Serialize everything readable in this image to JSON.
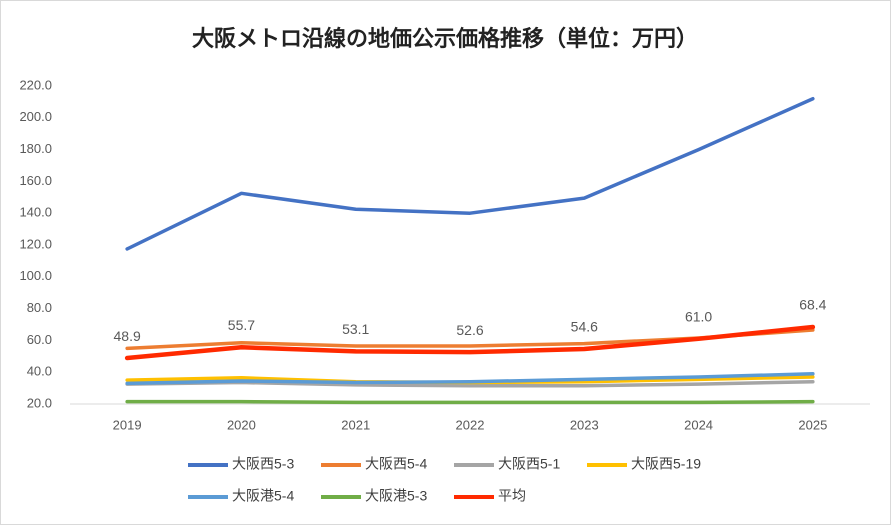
{
  "chart_data": {
    "type": "line",
    "title": "大阪メトロ沿線の地価公示価格推移（単位：万円）",
    "categories": [
      "2019",
      "2020",
      "2021",
      "2022",
      "2023",
      "2024",
      "2025"
    ],
    "ylim": [
      20,
      220
    ],
    "yticks": [
      {
        "value": 20,
        "label": "20.0"
      },
      {
        "value": 40,
        "label": "40.0"
      },
      {
        "value": 60,
        "label": "60.0"
      },
      {
        "value": 80,
        "label": "80.0"
      },
      {
        "value": 100,
        "label": "100.0"
      },
      {
        "value": 120,
        "label": "120.0"
      },
      {
        "value": 140,
        "label": "140.0"
      },
      {
        "value": 160,
        "label": "160.0"
      },
      {
        "value": 180,
        "label": "180.0"
      },
      {
        "value": 200,
        "label": "200.0"
      },
      {
        "value": 220,
        "label": "220.0"
      }
    ],
    "grid": false,
    "legend": "bottom",
    "series": [
      {
        "name": "大阪西5-3",
        "color": "#4472c4",
        "values": [
          117.5,
          152.5,
          142.5,
          140,
          149.5,
          180,
          212
        ]
      },
      {
        "name": "大阪西5-4",
        "color": "#ed7d31",
        "values": [
          55,
          58.5,
          56.5,
          56.5,
          58,
          61.5,
          66.5
        ]
      },
      {
        "name": "大阪西5-1",
        "color": "#a5a5a5",
        "values": [
          32.5,
          33.5,
          32,
          31.5,
          31.5,
          32.5,
          34
        ]
      },
      {
        "name": "大阪西5-19",
        "color": "#ffc000",
        "values": [
          35,
          36.5,
          34,
          33.5,
          34,
          35.5,
          37
        ]
      },
      {
        "name": "大阪港5-4",
        "color": "#5b9bd5",
        "values": [
          33,
          34.5,
          33.5,
          34,
          35.5,
          37,
          39
        ]
      },
      {
        "name": "大阪港5-3",
        "color": "#70ad47",
        "values": [
          21.5,
          21.5,
          21,
          21,
          21,
          21,
          21.5
        ]
      },
      {
        "name": "平均",
        "color": "#ff2a00",
        "values": [
          48.9,
          55.7,
          53.1,
          52.6,
          54.6,
          61.0,
          68.4
        ],
        "value_labels": [
          "48.9",
          "55.7",
          "53.1",
          "52.6",
          "54.6",
          "61.0",
          "68.4"
        ]
      }
    ]
  }
}
